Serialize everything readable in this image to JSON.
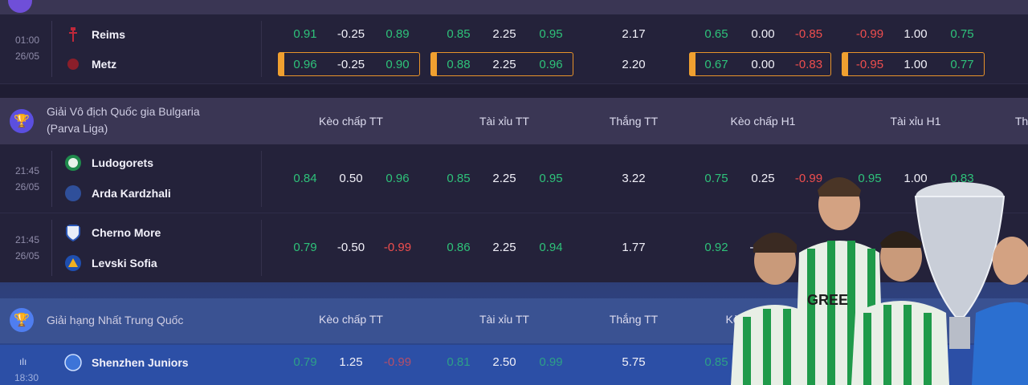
{
  "colors": {
    "green": "#2ec27a",
    "red": "#ef4e4e",
    "highlight": "#e8932a"
  },
  "match1": {
    "time": "01:00",
    "date": "26/05",
    "home": "Reims",
    "away": "Metz",
    "home_odds": [
      "0.91",
      "-0.25",
      "0.89",
      "0.85",
      "2.25",
      "0.95",
      "2.17",
      "0.65",
      "0.00",
      "-0.85",
      "-0.99",
      "1.00",
      "0.75"
    ],
    "away_odds": [
      "0.96",
      "-0.25",
      "0.90",
      "0.88",
      "2.25",
      "0.96",
      "2.20",
      "0.67",
      "0.00",
      "-0.83",
      "-0.95",
      "1.00",
      "0.77"
    ]
  },
  "league1": {
    "name_line1": "Giải Vô địch Quốc gia Bulgaria",
    "name_line2": "(Parva Liga)",
    "cols": [
      "Kèo chấp TT",
      "Tài xỉu TT",
      "Thắng TT",
      "Kèo chấp H1",
      "Tài xỉu H1",
      "Th"
    ]
  },
  "match2": {
    "time": "21:45",
    "date": "26/05",
    "home": "Ludogorets",
    "away": "Arda Kardzhali",
    "odds": [
      "0.84",
      "0.50",
      "0.96",
      "0.85",
      "2.25",
      "0.95",
      "3.22",
      "0.75",
      "0.25",
      "-0.99",
      "0.95",
      "1.00",
      "0.83"
    ]
  },
  "match3": {
    "time": "21:45",
    "date": "26/05",
    "home": "Cherno More",
    "away": "Levski Sofia",
    "odds": [
      "0.79",
      "-0.50",
      "-0.99",
      "0.86",
      "2.25",
      "0.94",
      "1.77",
      "0.92",
      "-0"
    ]
  },
  "league2": {
    "name": "Giải hạng Nhất Trung Quốc",
    "cols": [
      "Kèo chấp TT",
      "Tài xỉu TT",
      "Thắng TT",
      "Kè"
    ]
  },
  "match4": {
    "time": "18:30",
    "home": "Shenzhen Juniors",
    "odds": [
      "0.79",
      "1.25",
      "-0.99",
      "0.81",
      "2.50",
      "0.99",
      "5.75",
      "0.85"
    ]
  },
  "promo": {
    "sponsor": "GREE"
  }
}
